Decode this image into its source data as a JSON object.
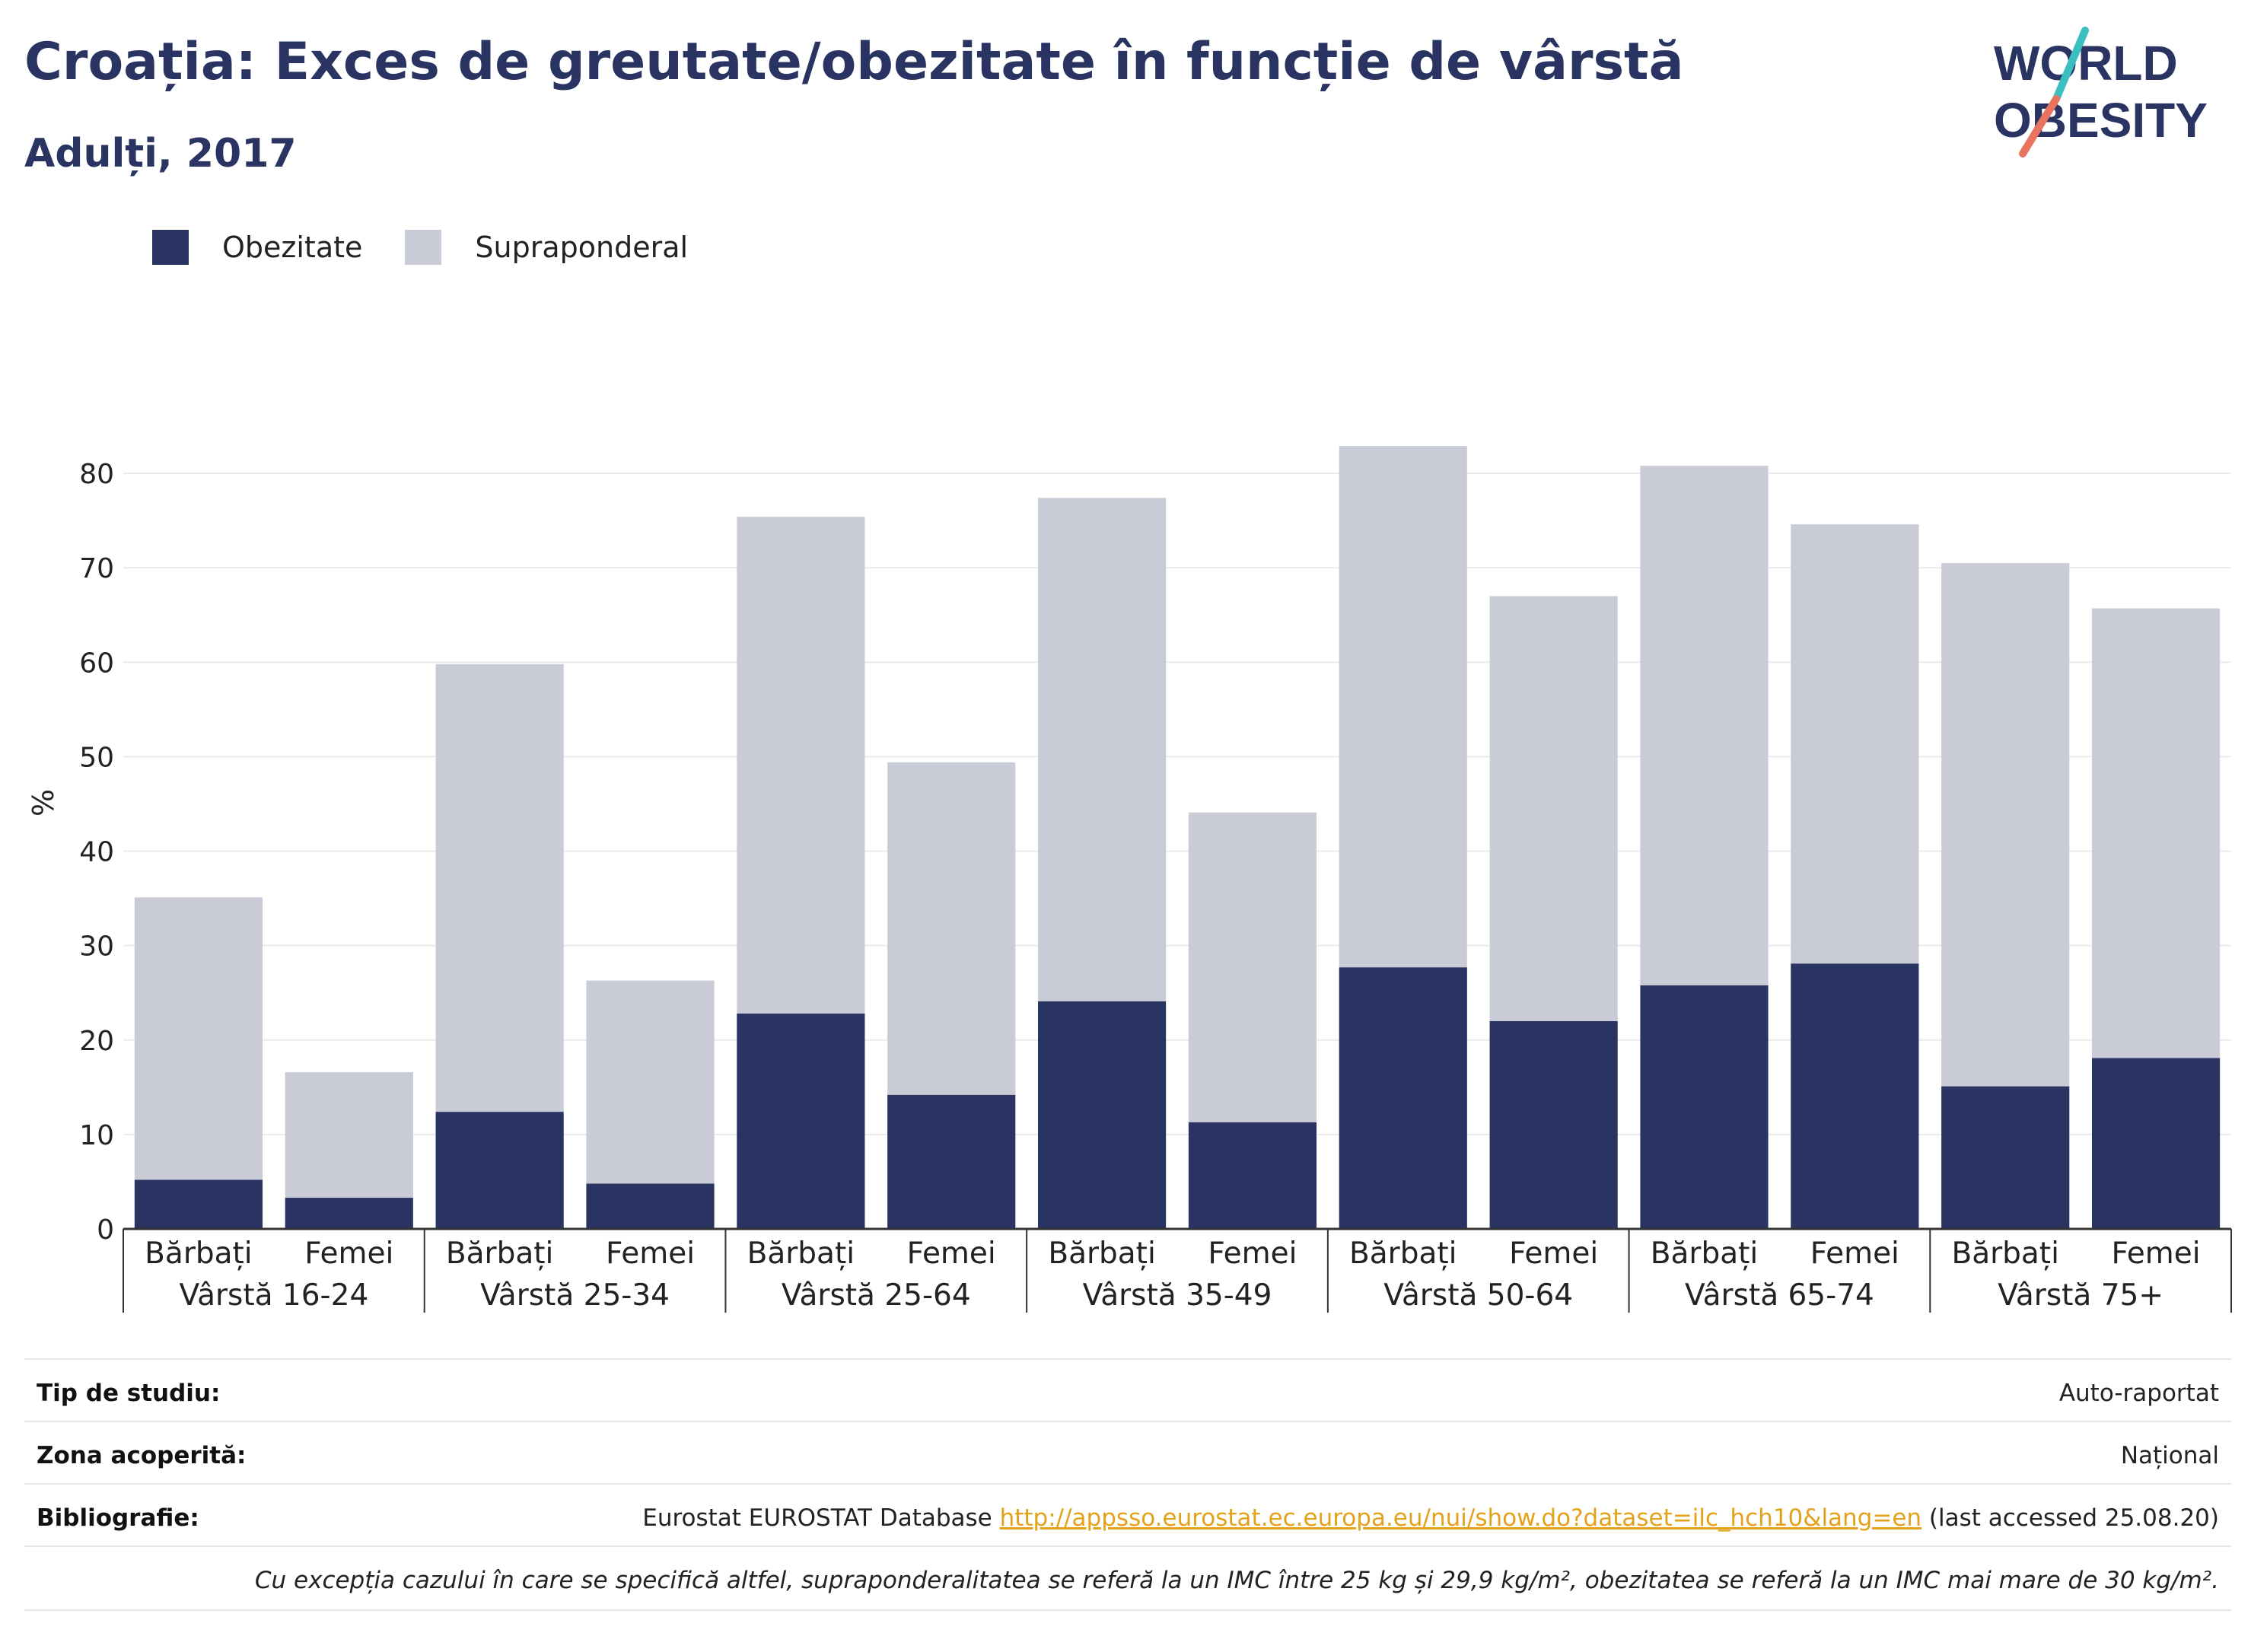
{
  "header": {
    "title": "Croația: Exces de greutate/obezitate în funcție de vârstă",
    "subtitle": "Adulți, 2017"
  },
  "logo": {
    "line1": "WORLD",
    "line2": "OBESITY",
    "slash_color_top": "#3bbfc1",
    "slash_color_bottom": "#e8735e"
  },
  "legend": {
    "items": [
      {
        "label": "Obezitate",
        "color": "#293462"
      },
      {
        "label": "Supraponderal",
        "color": "#c9cbd7"
      }
    ]
  },
  "chart_data": {
    "type": "bar",
    "stacked": true,
    "ylabel": "%",
    "ylim": [
      0,
      85
    ],
    "yticks": [
      0,
      10,
      20,
      30,
      40,
      50,
      60,
      70,
      80
    ],
    "grid": true,
    "legend_position": "top-left",
    "groups": [
      {
        "label": "Vârstă 16-24",
        "categories": [
          "Bărbați",
          "Femei"
        ]
      },
      {
        "label": "Vârstă 25-34",
        "categories": [
          "Bărbați",
          "Femei"
        ]
      },
      {
        "label": "Vârstă 25-64",
        "categories": [
          "Bărbați",
          "Femei"
        ]
      },
      {
        "label": "Vârstă 35-49",
        "categories": [
          "Bărbați",
          "Femei"
        ]
      },
      {
        "label": "Vârstă 50-64",
        "categories": [
          "Bărbați",
          "Femei"
        ]
      },
      {
        "label": "Vârstă 65-74",
        "categories": [
          "Bărbați",
          "Femei"
        ]
      },
      {
        "label": "Vârstă 75+",
        "categories": [
          "Bărbați",
          "Femei"
        ]
      }
    ],
    "series": [
      {
        "name": "Obezitate",
        "color": "#293462",
        "values": [
          5.2,
          3.3,
          12.4,
          4.8,
          22.8,
          14.2,
          24.1,
          11.3,
          27.7,
          22.0,
          25.8,
          28.1,
          15.1,
          18.1
        ]
      },
      {
        "name": "Supraponderal",
        "color": "#c9cbd7",
        "values": [
          29.9,
          13.3,
          47.4,
          21.5,
          52.6,
          35.2,
          53.3,
          32.8,
          55.2,
          45.0,
          55.0,
          46.5,
          55.4,
          47.6
        ]
      }
    ]
  },
  "info": {
    "study_type_label": "Tip de studiu:",
    "study_type_value": "Auto-raportat",
    "coverage_label": "Zona acoperită:",
    "coverage_value": "Național",
    "bibliography_label": "Bibliografie:",
    "bibliography_prefix": "Eurostat EUROSTAT Database ",
    "bibliography_link": "http://appsso.eurostat.ec.europa.eu/nui/show.do?dataset=ilc_hch10&lang=en",
    "bibliography_suffix": " (last accessed 25.08.20)",
    "footnote": "Cu excepția cazului în care se specifică altfel, supraponderalitatea se referă la un IMC între 25 kg și 29,9 kg/m², obezitatea se referă la un IMC mai mare de 30 kg/m²."
  }
}
